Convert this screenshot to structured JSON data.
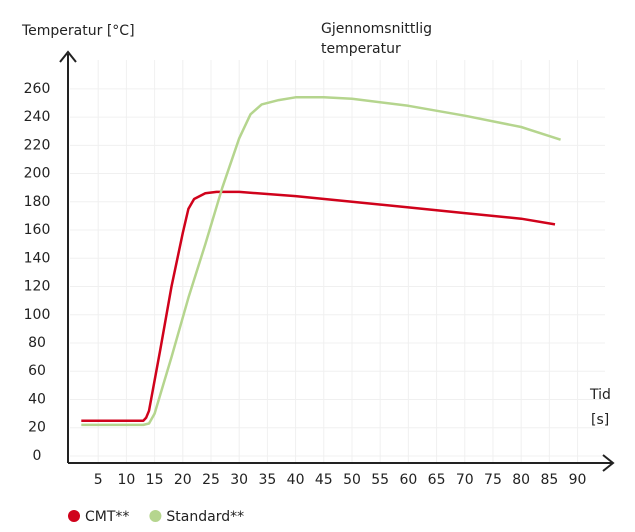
{
  "chart_data": {
    "type": "line",
    "y_label": "Temperatur [°C]",
    "annotation": [
      "Gjennomsnittlig",
      "temperatur"
    ],
    "x_label": [
      "Tid",
      "[s]"
    ],
    "xlim": [
      0,
      96
    ],
    "ylim": [
      -4,
      288
    ],
    "xticks": [
      5,
      10,
      15,
      20,
      25,
      30,
      35,
      40,
      45,
      50,
      55,
      60,
      65,
      70,
      75,
      80,
      85,
      90
    ],
    "yticks": [
      0,
      20,
      40,
      60,
      80,
      100,
      120,
      140,
      160,
      180,
      200,
      220,
      240,
      260
    ],
    "grid": true,
    "series": [
      {
        "name": "CMT**",
        "color": "#d0021b",
        "x": [
          2,
          13,
          13.5,
          14,
          16,
          18,
          20,
          21,
          22,
          24,
          26,
          28,
          30,
          40,
          50,
          60,
          70,
          80,
          86
        ],
        "values": [
          25,
          25,
          27,
          32,
          75,
          120,
          158,
          175,
          182,
          186,
          187,
          187,
          187,
          184,
          180,
          176,
          172,
          168,
          164
        ]
      },
      {
        "name": "Standard**",
        "color": "#b5d58e",
        "x": [
          2,
          13,
          14,
          15,
          18,
          21,
          24,
          27,
          30,
          32,
          34,
          37,
          40,
          45,
          50,
          60,
          70,
          80,
          87
        ],
        "values": [
          22,
          22,
          23,
          30,
          70,
          112,
          150,
          190,
          225,
          242,
          249,
          252,
          254,
          254,
          253,
          248,
          241,
          233,
          224
        ]
      }
    ]
  }
}
